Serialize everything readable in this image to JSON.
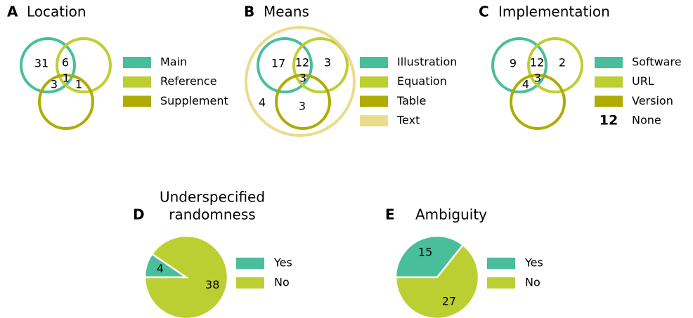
{
  "chart_data": [
    {
      "type": "venn",
      "panel": "A",
      "title": "Location",
      "sets": [
        {
          "name": "Main",
          "color": "#48bf9a"
        },
        {
          "name": "Reference",
          "color": "#bccf32"
        },
        {
          "name": "Supplement",
          "color": "#aeac02"
        }
      ],
      "regions": [
        {
          "sets": [
            0
          ],
          "value": 31
        },
        {
          "sets": [
            0,
            1
          ],
          "value": 6
        },
        {
          "sets": [
            0,
            1,
            2
          ],
          "value": 1
        },
        {
          "sets": [
            0,
            2
          ],
          "value": 3
        },
        {
          "sets": [
            1,
            2
          ],
          "value": 1
        }
      ]
    },
    {
      "type": "venn",
      "panel": "B",
      "title": "Means",
      "sets": [
        {
          "name": "Illustration",
          "color": "#48bf9a"
        },
        {
          "name": "Equation",
          "color": "#bccf32"
        },
        {
          "name": "Table",
          "color": "#aeac02"
        },
        {
          "name": "Text",
          "color": "#ebdc8c"
        }
      ],
      "regions": [
        {
          "sets": [
            0
          ],
          "value": 17
        },
        {
          "sets": [
            0,
            1
          ],
          "value": 12
        },
        {
          "sets": [
            1
          ],
          "value": 3
        },
        {
          "sets": [
            0,
            1,
            2
          ],
          "value": 3
        },
        {
          "sets": [
            3
          ],
          "value": 4
        },
        {
          "sets": [
            2
          ],
          "value": 3
        }
      ]
    },
    {
      "type": "venn",
      "panel": "C",
      "title": "Implementation",
      "sets": [
        {
          "name": "Software",
          "color": "#48bf9a"
        },
        {
          "name": "URL",
          "color": "#bccf32"
        },
        {
          "name": "Version",
          "color": "#aeac02"
        }
      ],
      "regions": [
        {
          "sets": [
            0
          ],
          "value": 9
        },
        {
          "sets": [
            0,
            1
          ],
          "value": 12
        },
        {
          "sets": [
            1
          ],
          "value": 2
        },
        {
          "sets": [
            0,
            2
          ],
          "value": 4
        },
        {
          "sets": [
            0,
            1,
            2
          ],
          "value": 3
        }
      ],
      "none": {
        "name": "None",
        "value": 12
      }
    },
    {
      "type": "pie",
      "panel": "D",
      "title": [
        "Underspecified",
        "randomness"
      ],
      "categories": [
        "Yes",
        "No"
      ],
      "values": [
        4,
        38
      ],
      "colors": [
        "#48bf9a",
        "#bccf32"
      ]
    },
    {
      "type": "pie",
      "panel": "E",
      "title": "Ambiguity",
      "categories": [
        "Yes",
        "No"
      ],
      "values": [
        15,
        27
      ],
      "colors": [
        "#48bf9a",
        "#bccf32"
      ]
    }
  ]
}
